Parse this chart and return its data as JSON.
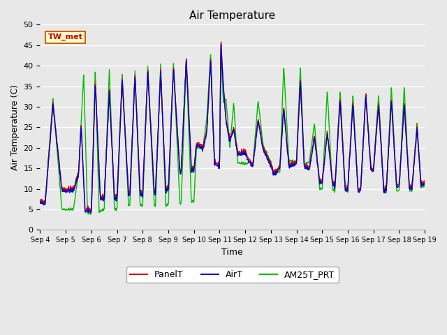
{
  "title": "Air Temperature",
  "xlabel": "Time",
  "ylabel": "Air Temperature (C)",
  "ylim": [
    0,
    50
  ],
  "yticks": [
    0,
    5,
    10,
    15,
    20,
    25,
    30,
    35,
    40,
    45,
    50
  ],
  "plot_bg_color": "#e8e8e8",
  "grid_color": "#ffffff",
  "annotation_text": "TW_met",
  "annotation_bg": "#ffffcc",
  "annotation_border": "#cc6600",
  "annotation_text_color": "#cc0000",
  "legend_labels": [
    "PanelT",
    "AirT",
    "AM25T_PRT"
  ],
  "series_colors": [
    "#dd0000",
    "#0000cc",
    "#00bb00"
  ],
  "xtick_labels": [
    "Sep 4",
    "Sep 5",
    "Sep 6",
    "Sep 7",
    "Sep 8",
    "Sep 9",
    "Sep 9",
    "Sep 10",
    "Sep 11",
    "Sep 11",
    "Sep 12",
    "Sep 13",
    "Sep 13",
    "Sep 14",
    "Sep 15",
    "Sep 15",
    "Sep 16",
    "Sep 17",
    "Sep 17",
    "Sep 18",
    "Sep 19"
  ],
  "n_days": 15,
  "points_per_day": 96
}
